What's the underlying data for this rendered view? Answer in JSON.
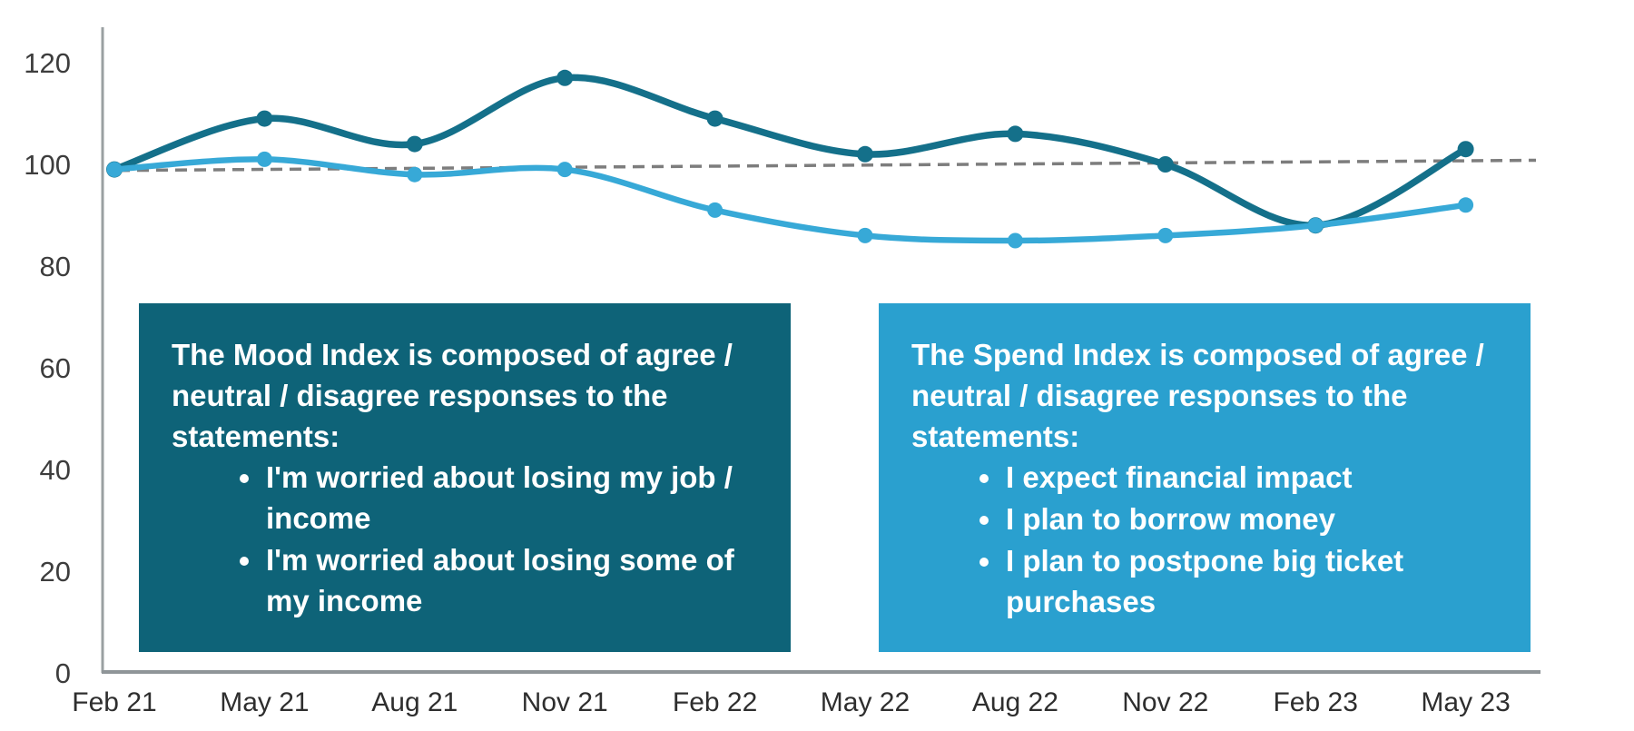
{
  "chart_data": {
    "type": "line",
    "categories": [
      "Feb 21",
      "May 21",
      "Aug 21",
      "Nov 21",
      "Feb 22",
      "May 22",
      "Aug 22",
      "Nov 22",
      "Feb 23",
      "May 23"
    ],
    "series": [
      {
        "name": "Mood Index",
        "color": "#14708a",
        "values": [
          99,
          109,
          104,
          117,
          109,
          102,
          106,
          100,
          88,
          103
        ]
      },
      {
        "name": "Spend Index",
        "color": "#37a9d7",
        "values": [
          99,
          101,
          98,
          99,
          91,
          86,
          85,
          86,
          88,
          92
        ]
      }
    ],
    "baseline": {
      "name": "index-100-trend",
      "style": "dashed",
      "color": "#7d7d7d",
      "start_value": 99,
      "end_value": 101
    },
    "title": "",
    "xlabel": "",
    "ylabel": "",
    "ylim": [
      0,
      120
    ],
    "yticks": [
      0,
      20,
      40,
      60,
      80,
      100,
      120
    ],
    "grid": false,
    "legend": "none",
    "axis_color": "#9aa0a2",
    "tick_label_color": "#2e2e2e"
  },
  "notes": {
    "mood": {
      "bg": "#0e6378",
      "title": "The Mood Index is composed of agree / neutral / disagree responses to the statements:",
      "bullets": [
        "I'm worried about losing my job / income",
        "I'm worried about losing some of my income"
      ]
    },
    "spend": {
      "bg": "#2aa0cf",
      "title": "The Spend Index is composed of agree / neutral / disagree responses to the statements:",
      "bullets": [
        "I expect financial impact",
        "I plan to borrow money",
        "I plan to postpone big ticket purchases"
      ]
    }
  }
}
